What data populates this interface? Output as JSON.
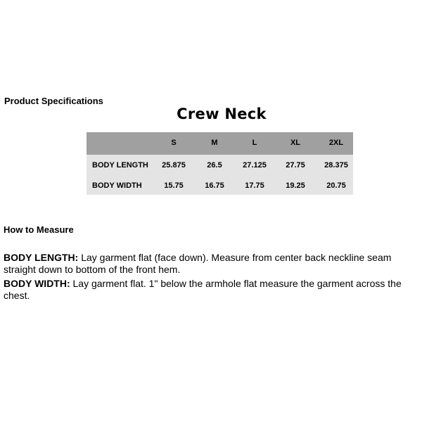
{
  "heading": "Product Specifications",
  "title": "Crew Neck",
  "table": {
    "columns": [
      "S",
      "M",
      "L",
      "XL",
      "2XL"
    ],
    "rows": [
      {
        "label": "BODY LENGTH",
        "values": [
          "25.875",
          "26.5",
          "27.125",
          "27.75",
          "28.375"
        ]
      },
      {
        "label": "BODY WIDTH",
        "values": [
          "15.75",
          "16.75",
          "17.75",
          "19.25",
          "20.75"
        ]
      }
    ]
  },
  "measure": {
    "heading": "How to Measure",
    "items": [
      {
        "term": "BODY LENGTH:",
        "text": " Lay garment flat (face down). Measure from center back neckline seam straight down to bottom of the front hem."
      },
      {
        "term": "BODY WIDTH:",
        "text": " Lay garment flat. 1\" below the armhole flat measure the garment across the chest."
      }
    ]
  },
  "colors": {
    "header_bg": "#a0a0a0",
    "body_bg": "#e4e4e4"
  }
}
